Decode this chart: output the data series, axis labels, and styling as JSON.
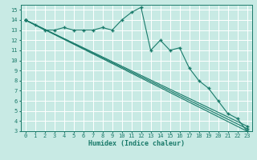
{
  "title": "",
  "xlabel": "Humidex (Indice chaleur)",
  "background_color": "#c8eae4",
  "grid_color": "#ffffff",
  "line_color": "#1a7a6a",
  "xlim": [
    -0.5,
    23.5
  ],
  "ylim": [
    3,
    15.5
  ],
  "xticks": [
    0,
    1,
    2,
    3,
    4,
    5,
    6,
    7,
    8,
    9,
    10,
    11,
    12,
    13,
    14,
    15,
    16,
    17,
    18,
    19,
    20,
    21,
    22,
    23
  ],
  "yticks": [
    3,
    4,
    5,
    6,
    7,
    8,
    9,
    10,
    11,
    12,
    13,
    14,
    15
  ],
  "series": [
    {
      "x": [
        0,
        1,
        2,
        3,
        4,
        5,
        6,
        7,
        8,
        9,
        10,
        11,
        12,
        13,
        14,
        15,
        16,
        17,
        18,
        19,
        20,
        21,
        22,
        23
      ],
      "y": [
        14,
        13.5,
        13.0,
        13.0,
        13.25,
        13.0,
        13.0,
        13.0,
        13.25,
        13.0,
        14.0,
        14.75,
        15.25,
        11.0,
        12.0,
        11.0,
        11.25,
        9.25,
        8.0,
        7.25,
        6.0,
        4.75,
        4.25,
        3.0
      ]
    },
    {
      "x": [
        0,
        23
      ],
      "y": [
        14,
        3.0
      ]
    },
    {
      "x": [
        0,
        23
      ],
      "y": [
        14,
        3.0
      ]
    },
    {
      "x": [
        0,
        23
      ],
      "y": [
        14,
        3.0
      ]
    }
  ],
  "straight_series": [
    {
      "x": [
        0,
        23
      ],
      "y": [
        14,
        3.0
      ]
    },
    {
      "x": [
        0,
        23
      ],
      "y": [
        14,
        3.25
      ]
    },
    {
      "x": [
        0,
        23
      ],
      "y": [
        14,
        3.5
      ]
    }
  ]
}
